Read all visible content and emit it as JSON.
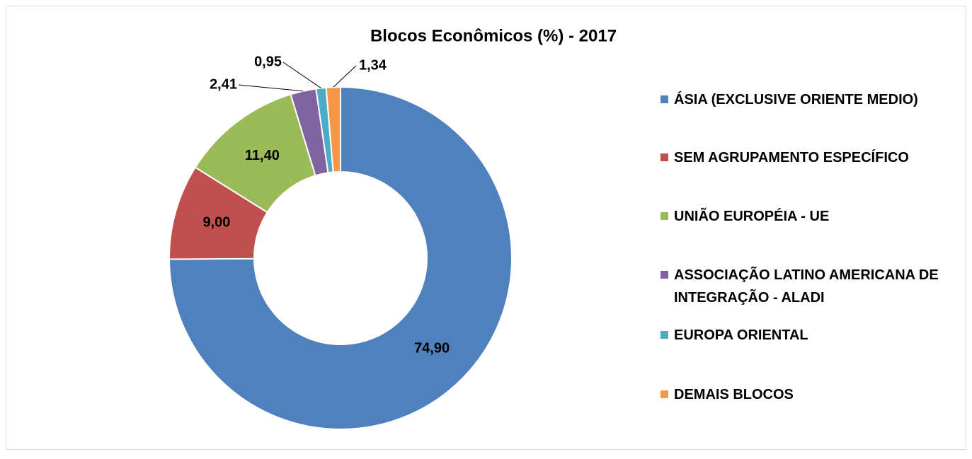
{
  "chart_data": {
    "type": "donut",
    "title": "Blocos Econômicos (%) - 2017",
    "categories": [
      "ÁSIA (EXCLUSIVE ORIENTE MEDIO)",
      "SEM AGRUPAMENTO ESPECÍFICO",
      "UNIÃO EUROPÉIA - UE",
      "ASSOCIAÇÃO LATINO AMERICANA DE INTEGRAÇÃO - ALADI",
      "EUROPA ORIENTAL",
      "DEMAIS BLOCOS"
    ],
    "values": [
      74.9,
      9.0,
      11.4,
      2.41,
      0.95,
      1.34
    ],
    "value_labels": [
      "74,90",
      "9,00",
      "11,40",
      "2,41",
      "0,95",
      "1,34"
    ],
    "colors": [
      "#4f81bd",
      "#c0504d",
      "#9bbb59",
      "#8064a2",
      "#4bacc6",
      "#f79646"
    ],
    "legend": "right"
  }
}
